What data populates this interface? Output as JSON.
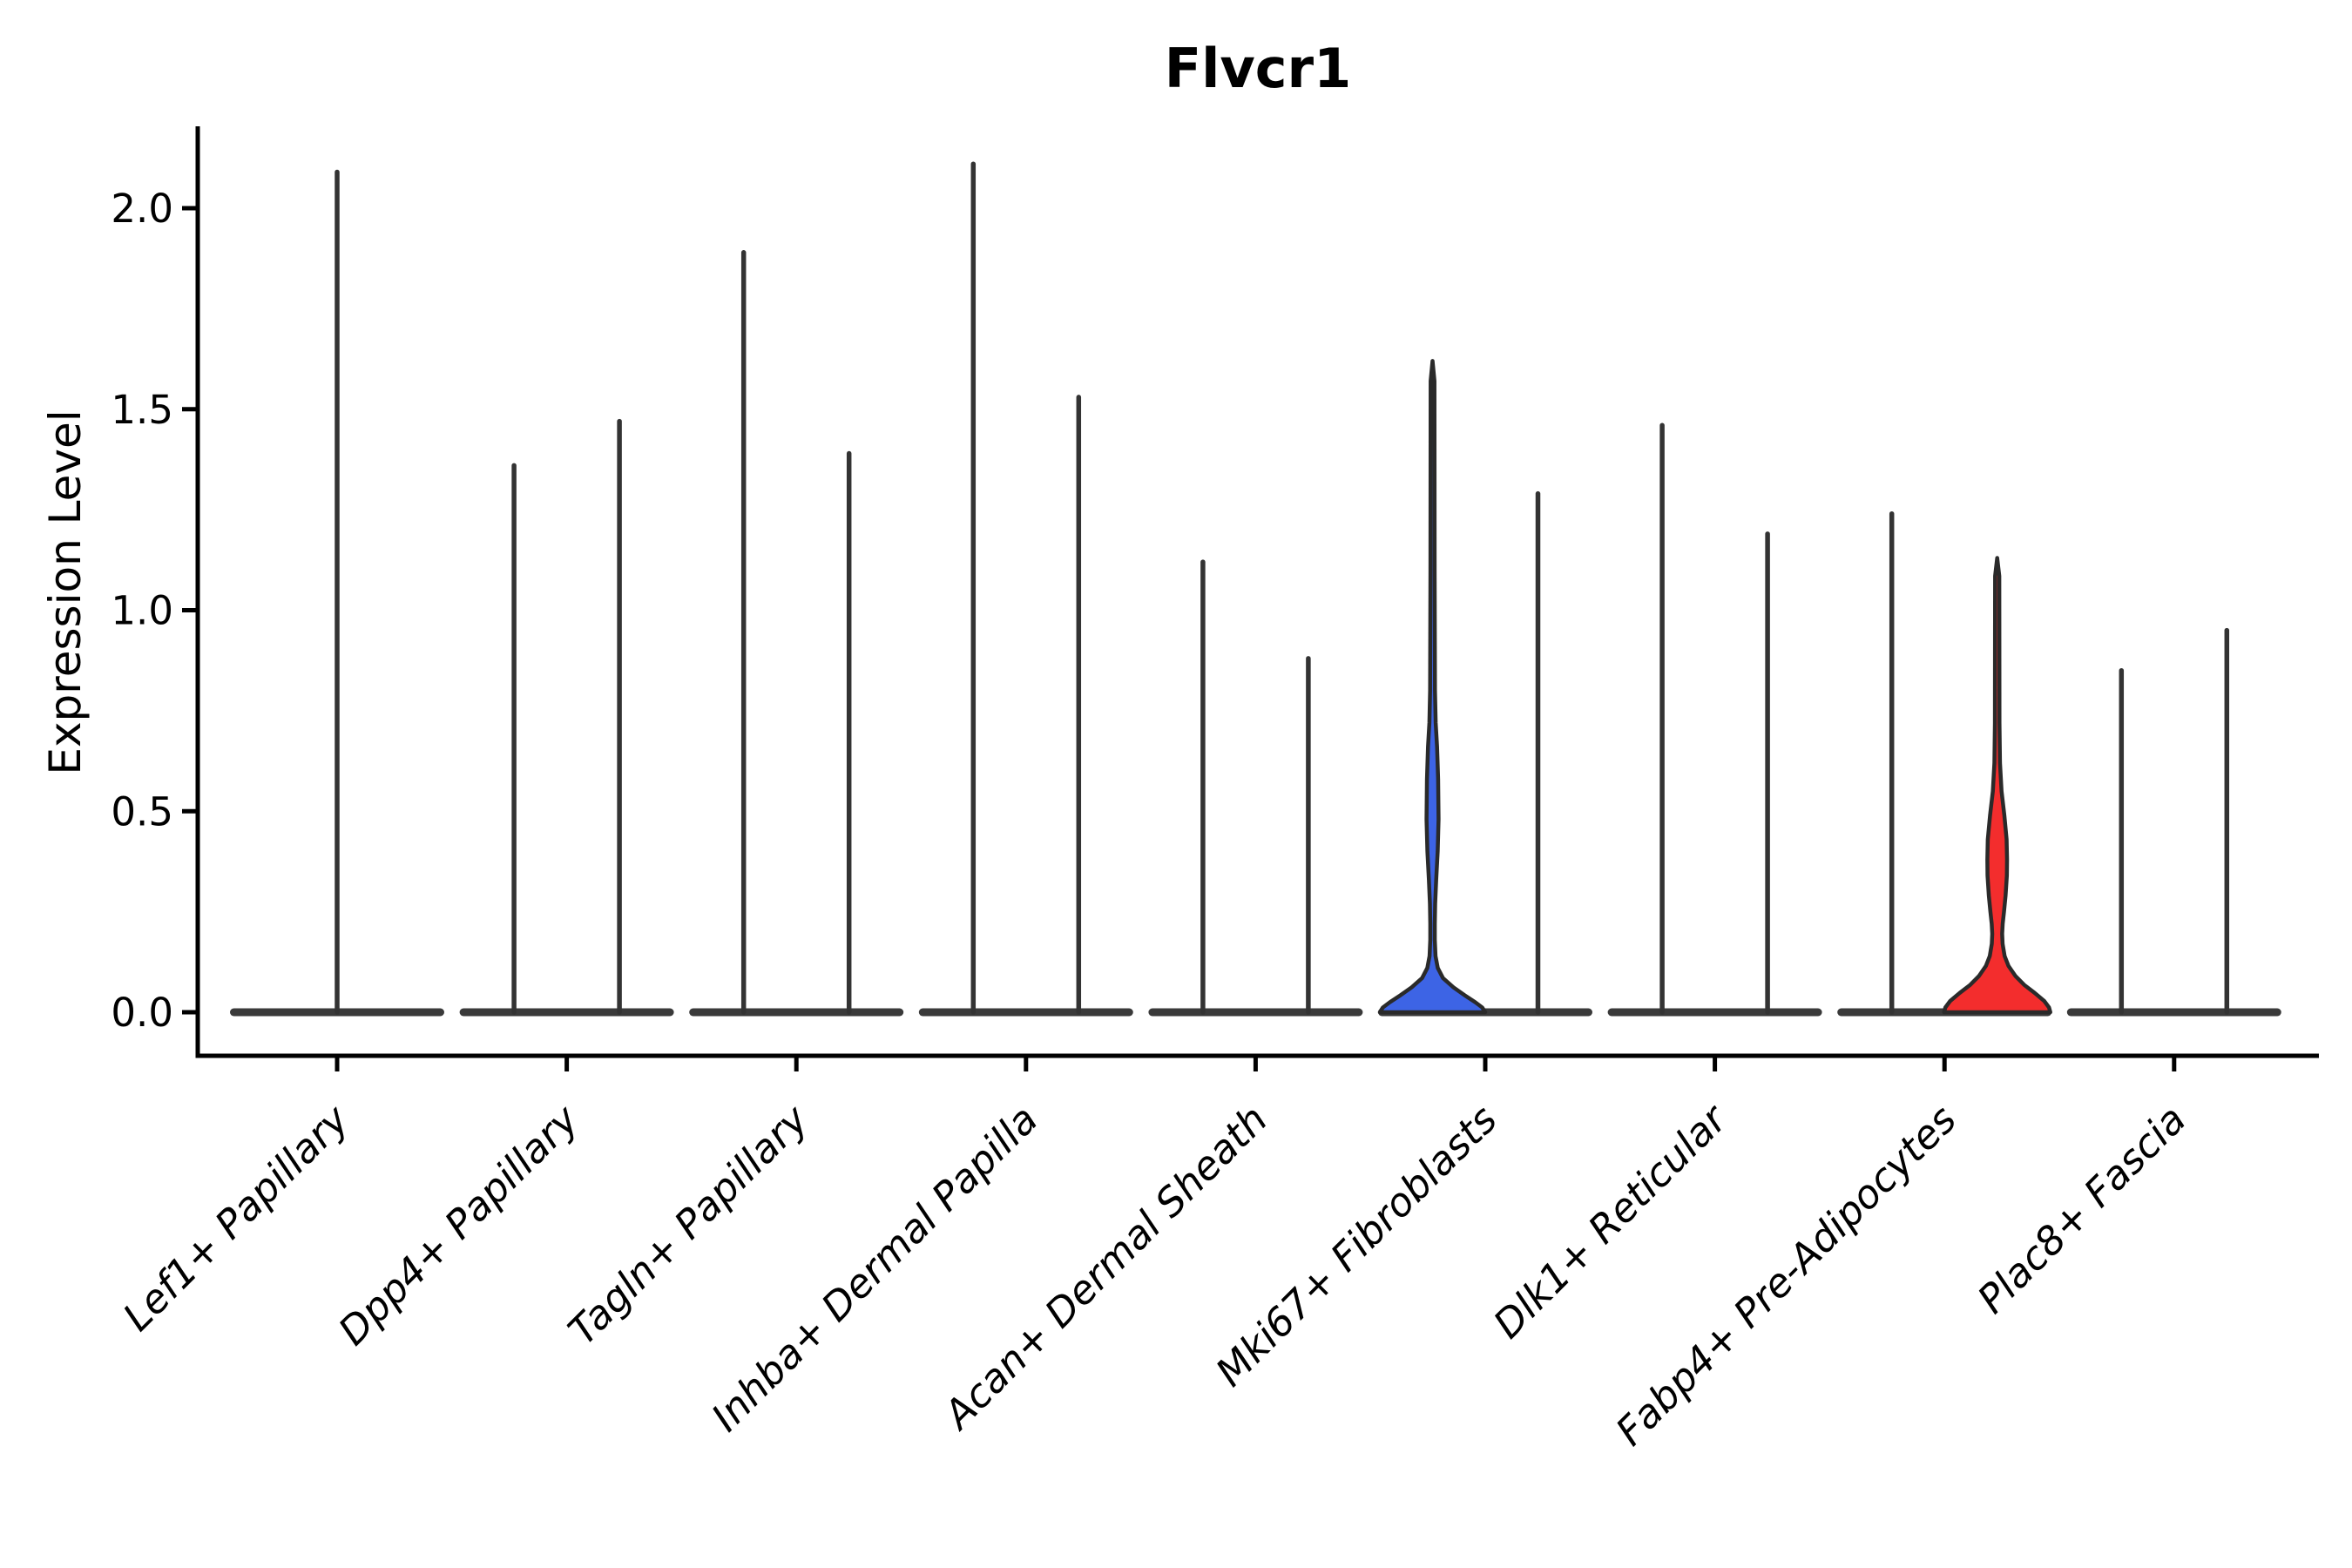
{
  "chart_data": {
    "type": "violin",
    "title": "Flvcr1",
    "ylabel": "Expression Level",
    "xlabel": "",
    "ylim": [
      0,
      2.2
    ],
    "grid": false,
    "legend": "none",
    "yticks": [
      {
        "label": "0.0",
        "value": 0.0
      },
      {
        "label": "0.5",
        "value": 0.5
      },
      {
        "label": "1.0",
        "value": 1.0
      },
      {
        "label": "1.5",
        "value": 1.5
      },
      {
        "label": "2.0",
        "value": 2.0
      }
    ],
    "colors": {
      "highlight_blue_fill": "#3D64E5",
      "highlight_red_fill": "#F32D2D",
      "violin_outline": "#2A2A2A",
      "spike_stroke": "#333333",
      "baseline_bar": "#3A3A3A",
      "axis_stroke": "#000000"
    },
    "note": "Violin plot of Flvcr1 expression; most violins collapse to a flat baseline at 0 with a thin spike to the max expression value; two violins have visible density bodies (blue: Mki67+ Fibroblasts left violin, red: Fabp4+ Pre-Adipocytes right violin).",
    "categories": [
      {
        "label": "Lef1+ Papillary",
        "violins": [
          {
            "position": "center",
            "max": 2.09,
            "shape": "spike"
          }
        ]
      },
      {
        "label": "Dpp4+ Papillary",
        "violins": [
          {
            "position": "left",
            "max": 1.36,
            "shape": "spike"
          },
          {
            "position": "right",
            "max": 1.47,
            "shape": "spike"
          }
        ]
      },
      {
        "label": "Tagln+ Papillary",
        "violins": [
          {
            "position": "left",
            "max": 1.89,
            "shape": "spike"
          },
          {
            "position": "right",
            "max": 1.39,
            "shape": "spike"
          }
        ]
      },
      {
        "label": "Inhba+ Dermal Papilla",
        "violins": [
          {
            "position": "left",
            "max": 2.11,
            "shape": "spike"
          },
          {
            "position": "right",
            "max": 1.53,
            "shape": "spike"
          }
        ]
      },
      {
        "label": "Acan+ Dermal Sheath",
        "violins": [
          {
            "position": "left",
            "max": 1.12,
            "shape": "spike"
          },
          {
            "position": "right",
            "max": 0.88,
            "shape": "spike"
          }
        ]
      },
      {
        "label": "Mki67+ Fibroblasts",
        "violins": [
          {
            "position": "left",
            "max": 1.62,
            "shape": "body",
            "fill": "#3D64E5",
            "profile": [
              [
                1.62,
                0
              ],
              [
                1.57,
                2.2
              ],
              [
                1.1,
                2.4
              ],
              [
                0.8,
                2.8
              ],
              [
                0.72,
                3.6
              ],
              [
                0.66,
                5.2
              ],
              [
                0.58,
                6.4
              ],
              [
                0.48,
                6.9
              ],
              [
                0.4,
                5.9
              ],
              [
                0.33,
                4.2
              ],
              [
                0.27,
                3.0
              ],
              [
                0.22,
                2.6
              ],
              [
                0.18,
                2.6
              ],
              [
                0.14,
                3.4
              ],
              [
                0.11,
                6.0
              ],
              [
                0.085,
                12
              ],
              [
                0.062,
                24
              ],
              [
                0.042,
                37
              ],
              [
                0.025,
                49
              ],
              [
                0.012,
                57
              ],
              [
                0.0,
                60.5
              ]
            ]
          },
          {
            "position": "right",
            "max": 1.29,
            "shape": "spike"
          }
        ]
      },
      {
        "label": "Dlk1+ Reticular",
        "violins": [
          {
            "position": "left",
            "max": 1.46,
            "shape": "spike"
          },
          {
            "position": "right",
            "max": 1.19,
            "shape": "spike"
          }
        ]
      },
      {
        "label": "Fabp4+ Pre-Adipocytes",
        "violins": [
          {
            "position": "left",
            "max": 1.24,
            "shape": "spike"
          },
          {
            "position": "right",
            "max": 1.13,
            "shape": "body",
            "fill": "#F32D2D",
            "profile": [
              [
                1.13,
                0
              ],
              [
                1.085,
                2.4
              ],
              [
                0.72,
                2.6
              ],
              [
                0.62,
                3.2
              ],
              [
                0.55,
                5.0
              ],
              [
                0.49,
                8.2
              ],
              [
                0.43,
                10.8
              ],
              [
                0.38,
                11.3
              ],
              [
                0.34,
                11.1
              ],
              [
                0.29,
                9.6
              ],
              [
                0.25,
                7.8
              ],
              [
                0.22,
                6.3
              ],
              [
                0.195,
                5.7
              ],
              [
                0.17,
                6.2
              ],
              [
                0.14,
                8.5
              ],
              [
                0.115,
                13
              ],
              [
                0.09,
                21
              ],
              [
                0.068,
                31
              ],
              [
                0.048,
                43
              ],
              [
                0.028,
                54
              ],
              [
                0.012,
                59.5
              ],
              [
                0.0,
                61
              ]
            ]
          }
        ]
      },
      {
        "label": "Plac8+ Fascia",
        "violins": [
          {
            "position": "left",
            "max": 0.85,
            "shape": "spike"
          },
          {
            "position": "right",
            "max": 0.95,
            "shape": "spike"
          }
        ]
      }
    ]
  }
}
